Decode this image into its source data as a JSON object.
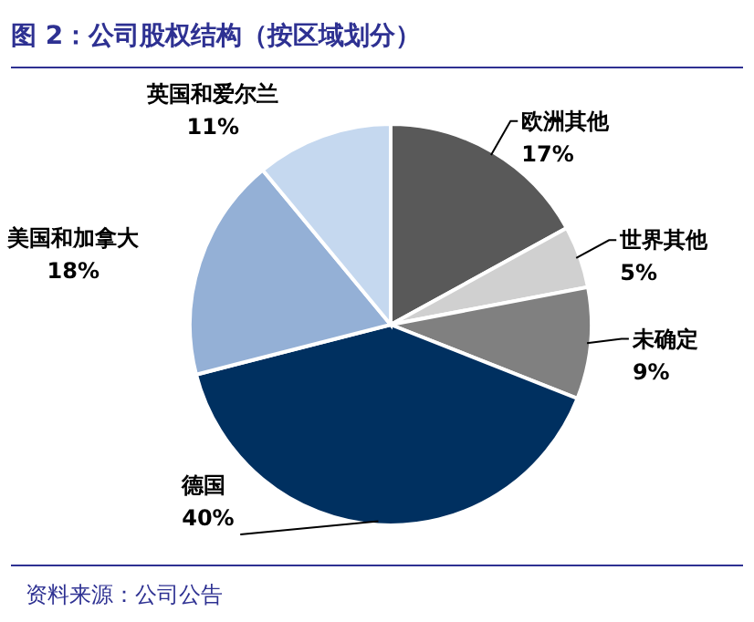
{
  "chart_data": {
    "type": "pie",
    "title": "图 2：公司股权结构（按区域划分）",
    "categories": [
      "欧洲其他",
      "世界其他",
      "未确定",
      "德国",
      "美国和加拿大",
      "英国和爱尔兰"
    ],
    "values": [
      17,
      5,
      9,
      40,
      18,
      11
    ],
    "colors": [
      "#595959",
      "#d0d0d0",
      "#808080",
      "#003060",
      "#94b0d6",
      "#c5d8ef"
    ],
    "value_labels": [
      "17%",
      "5%",
      "9%",
      "40%",
      "18%",
      "11%"
    ],
    "annotations": [
      "资料来源：公司公告"
    ]
  }
}
